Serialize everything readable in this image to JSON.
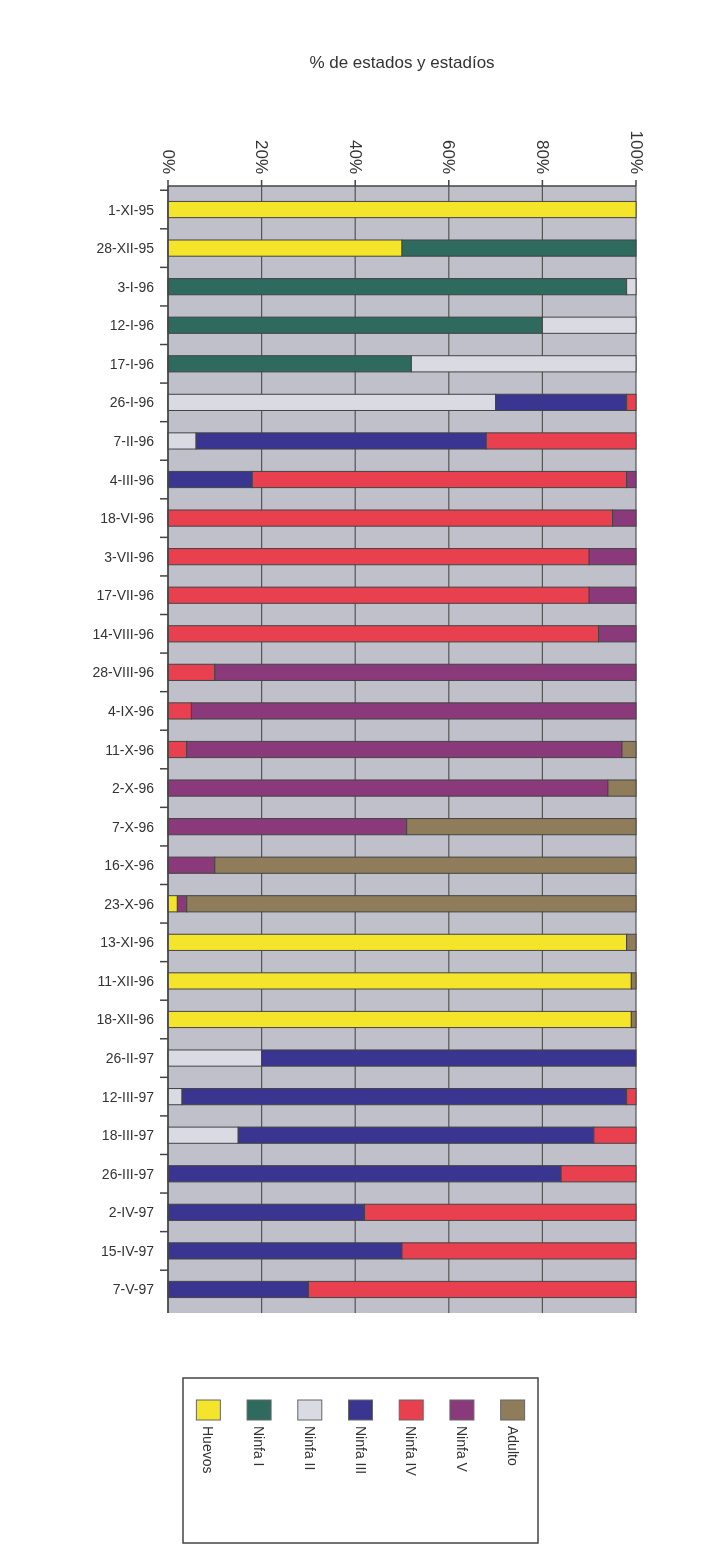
{
  "chart_data": {
    "type": "bar",
    "orientation": "horizontal",
    "stacked": true,
    "xlabel": "% de estados y estadíos",
    "categories": [
      "1-XI-95",
      "28-XII-95",
      "3-I-96",
      "12-I-96",
      "17-I-96",
      "26-I-96",
      "7-II-96",
      "4-III-96",
      "18-VI-96",
      "3-VII-96",
      "17-VII-96",
      "14-VIII-96",
      "28-VIII-96",
      "4-IX-96",
      "11-X-96",
      "2-X-96",
      "7-X-96",
      "16-X-96",
      "23-X-96",
      "13-XI-96",
      "11-XII-96",
      "18-XII-96",
      "26-II-97",
      "12-III-97",
      "18-III-97",
      "26-III-97",
      "2-IV-97",
      "15-IV-97",
      "7-V-97"
    ],
    "series": [
      {
        "name": "Huevos",
        "color": "#f5e52a",
        "values": [
          100,
          50,
          null,
          null,
          null,
          null,
          null,
          null,
          null,
          null,
          null,
          null,
          null,
          null,
          null,
          null,
          null,
          null,
          2,
          98,
          99,
          99,
          null,
          null,
          null,
          null,
          null,
          null,
          null
        ]
      },
      {
        "name": "Ninfa I",
        "color": "#2e6a5e",
        "values": [
          null,
          50,
          98,
          80,
          52,
          null,
          null,
          null,
          null,
          null,
          null,
          null,
          null,
          null,
          null,
          null,
          null,
          null,
          null,
          null,
          null,
          null,
          null,
          null,
          null,
          null,
          null,
          null,
          null
        ]
      },
      {
        "name": "Ninfa II",
        "color": "#dadbe2",
        "values": [
          null,
          null,
          2,
          20,
          48,
          70,
          6,
          null,
          null,
          null,
          null,
          null,
          null,
          null,
          null,
          null,
          null,
          null,
          null,
          null,
          null,
          null,
          20,
          3,
          15,
          null,
          null,
          null,
          null
        ]
      },
      {
        "name": "Ninfa III",
        "color": "#3a3590",
        "values": [
          null,
          null,
          null,
          null,
          null,
          28,
          62,
          18,
          null,
          null,
          null,
          null,
          null,
          null,
          null,
          null,
          null,
          null,
          null,
          null,
          null,
          null,
          80,
          95,
          76,
          84,
          42,
          50,
          30
        ]
      },
      {
        "name": "Ninfa IV",
        "color": "#e8404e",
        "values": [
          null,
          null,
          null,
          null,
          null,
          2,
          32,
          80,
          95,
          90,
          90,
          92,
          10,
          5,
          4,
          null,
          null,
          null,
          null,
          null,
          null,
          null,
          null,
          2,
          9,
          16,
          58,
          50,
          70
        ]
      },
      {
        "name": "Ninfa V",
        "color": "#8a3a7a",
        "values": [
          null,
          null,
          null,
          null,
          null,
          null,
          null,
          2,
          5,
          10,
          10,
          8,
          90,
          95,
          93,
          94,
          51,
          10,
          2,
          null,
          null,
          null,
          null,
          null,
          null,
          null,
          null,
          null,
          null
        ]
      },
      {
        "name": "Adulto",
        "color": "#8f7c5a",
        "values": [
          null,
          null,
          null,
          null,
          null,
          null,
          null,
          null,
          null,
          null,
          null,
          null,
          null,
          null,
          3,
          6,
          49,
          90,
          96,
          2,
          1,
          1,
          null,
          null,
          null,
          null,
          null,
          null,
          null
        ]
      }
    ],
    "xlim": [
      0,
      100
    ],
    "xticks": [
      {
        "value": 0,
        "label": "0%"
      },
      {
        "value": 20,
        "label": "20%"
      },
      {
        "value": 40,
        "label": "40%"
      },
      {
        "value": 60,
        "label": "60%"
      },
      {
        "value": 80,
        "label": "80%"
      },
      {
        "value": 100,
        "label": "100%"
      }
    ],
    "grid": "x",
    "legend": "bottom"
  }
}
